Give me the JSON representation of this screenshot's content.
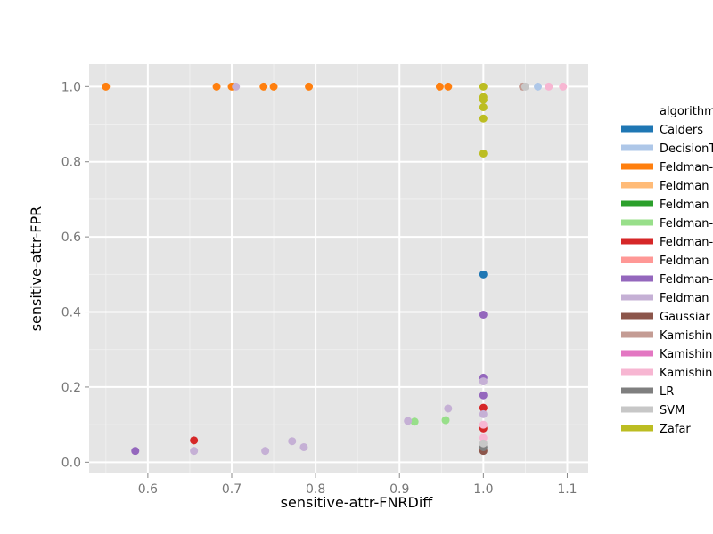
{
  "chart_data": {
    "type": "scatter",
    "title": "",
    "xlabel": "sensitive-attr-FNRDiff",
    "ylabel": "sensitive-attr-FPR",
    "xlim": [
      0.53,
      1.125
    ],
    "ylim": [
      -0.03,
      1.06
    ],
    "x_ticks": [
      "0.6",
      "0.7",
      "0.8",
      "0.9",
      "1.0",
      "1.1"
    ],
    "y_ticks": [
      "0.0",
      "0.2",
      "0.4",
      "0.6",
      "0.8",
      "1.0"
    ],
    "grid": true,
    "legend_position": "right",
    "legend_title": "algorithm",
    "series": [
      {
        "name": "Calders",
        "color": "#1f77b4",
        "points": [
          [
            1.0,
            0.5
          ]
        ]
      },
      {
        "name": "DecisionTree",
        "color": "#aec7e8",
        "points": [
          [
            1.065,
            1.0
          ]
        ]
      },
      {
        "name": "Feldman-DecisionTree",
        "color": "#ff7f0e",
        "points": [
          [
            0.55,
            1.0
          ],
          [
            0.682,
            1.0
          ],
          [
            0.7,
            1.0
          ],
          [
            0.738,
            1.0
          ],
          [
            0.75,
            1.0
          ],
          [
            0.792,
            1.0
          ],
          [
            0.948,
            1.0
          ],
          [
            0.958,
            1.0
          ]
        ]
      },
      {
        "name": "Feldman-DecisionTree",
        "color": "#ffbb78",
        "points": []
      },
      {
        "name": "Feldman-GaussianNB",
        "color": "#2ca02c",
        "points": []
      },
      {
        "name": "Feldman-GaussianNB",
        "color": "#98df8a",
        "points": [
          [
            0.918,
            0.108
          ],
          [
            0.955,
            0.112
          ]
        ]
      },
      {
        "name": "Feldman-LR",
        "color": "#d62728",
        "points": [
          [
            0.655,
            0.058
          ],
          [
            1.0,
            0.145
          ],
          [
            1.0,
            0.09
          ]
        ]
      },
      {
        "name": "Feldman-LR",
        "color": "#ff9896",
        "points": []
      },
      {
        "name": "Feldman-SVM",
        "color": "#9467bd",
        "points": [
          [
            0.585,
            0.03
          ],
          [
            1.0,
            0.393
          ],
          [
            1.0,
            0.225
          ],
          [
            1.0,
            0.178
          ]
        ]
      },
      {
        "name": "Feldman-SVM",
        "color": "#c5b0d5",
        "points": [
          [
            0.655,
            0.03
          ],
          [
            0.705,
            1.0
          ],
          [
            0.74,
            0.03
          ],
          [
            0.772,
            0.056
          ],
          [
            0.786,
            0.04
          ],
          [
            0.91,
            0.11
          ],
          [
            0.958,
            0.143
          ],
          [
            1.0,
            0.215
          ],
          [
            1.0,
            0.128
          ]
        ]
      },
      {
        "name": "GaussianNB",
        "color": "#8c564b",
        "points": [
          [
            1.0,
            0.03
          ]
        ]
      },
      {
        "name": "Kamishima",
        "color": "#c49c94",
        "points": [
          [
            1.047,
            1.0
          ]
        ]
      },
      {
        "name": "Kamishima",
        "color": "#e377c2",
        "points": []
      },
      {
        "name": "Kamishima",
        "color": "#f7b6d2",
        "points": [
          [
            1.078,
            1.0
          ],
          [
            1.095,
            1.0
          ],
          [
            1.0,
            0.1
          ],
          [
            1.0,
            0.065
          ]
        ]
      },
      {
        "name": "LR",
        "color": "#7f7f7f",
        "points": [
          [
            1.0,
            0.04
          ]
        ]
      },
      {
        "name": "SVM",
        "color": "#c7c7c7",
        "points": [
          [
            1.05,
            1.0
          ],
          [
            1.0,
            0.05
          ]
        ]
      },
      {
        "name": "Zafar",
        "color": "#bcbd22",
        "points": [
          [
            1.0,
            1.0
          ],
          [
            1.0,
            0.972
          ],
          [
            1.0,
            0.965
          ],
          [
            1.0,
            0.945
          ],
          [
            1.0,
            0.915
          ],
          [
            1.0,
            0.822
          ]
        ]
      }
    ],
    "legend_labels": [
      "Calders",
      "DecisionT",
      "Feldman-",
      "Feldman",
      "Feldman",
      "Feldman-",
      "Feldman-",
      "Feldman",
      "Feldman-",
      "Feldman",
      "Gaussiar",
      "Kamishin",
      "Kamishin",
      "Kamishin",
      "LR",
      "SVM",
      "Zafar"
    ],
    "legend_title_text": "algorithm"
  }
}
